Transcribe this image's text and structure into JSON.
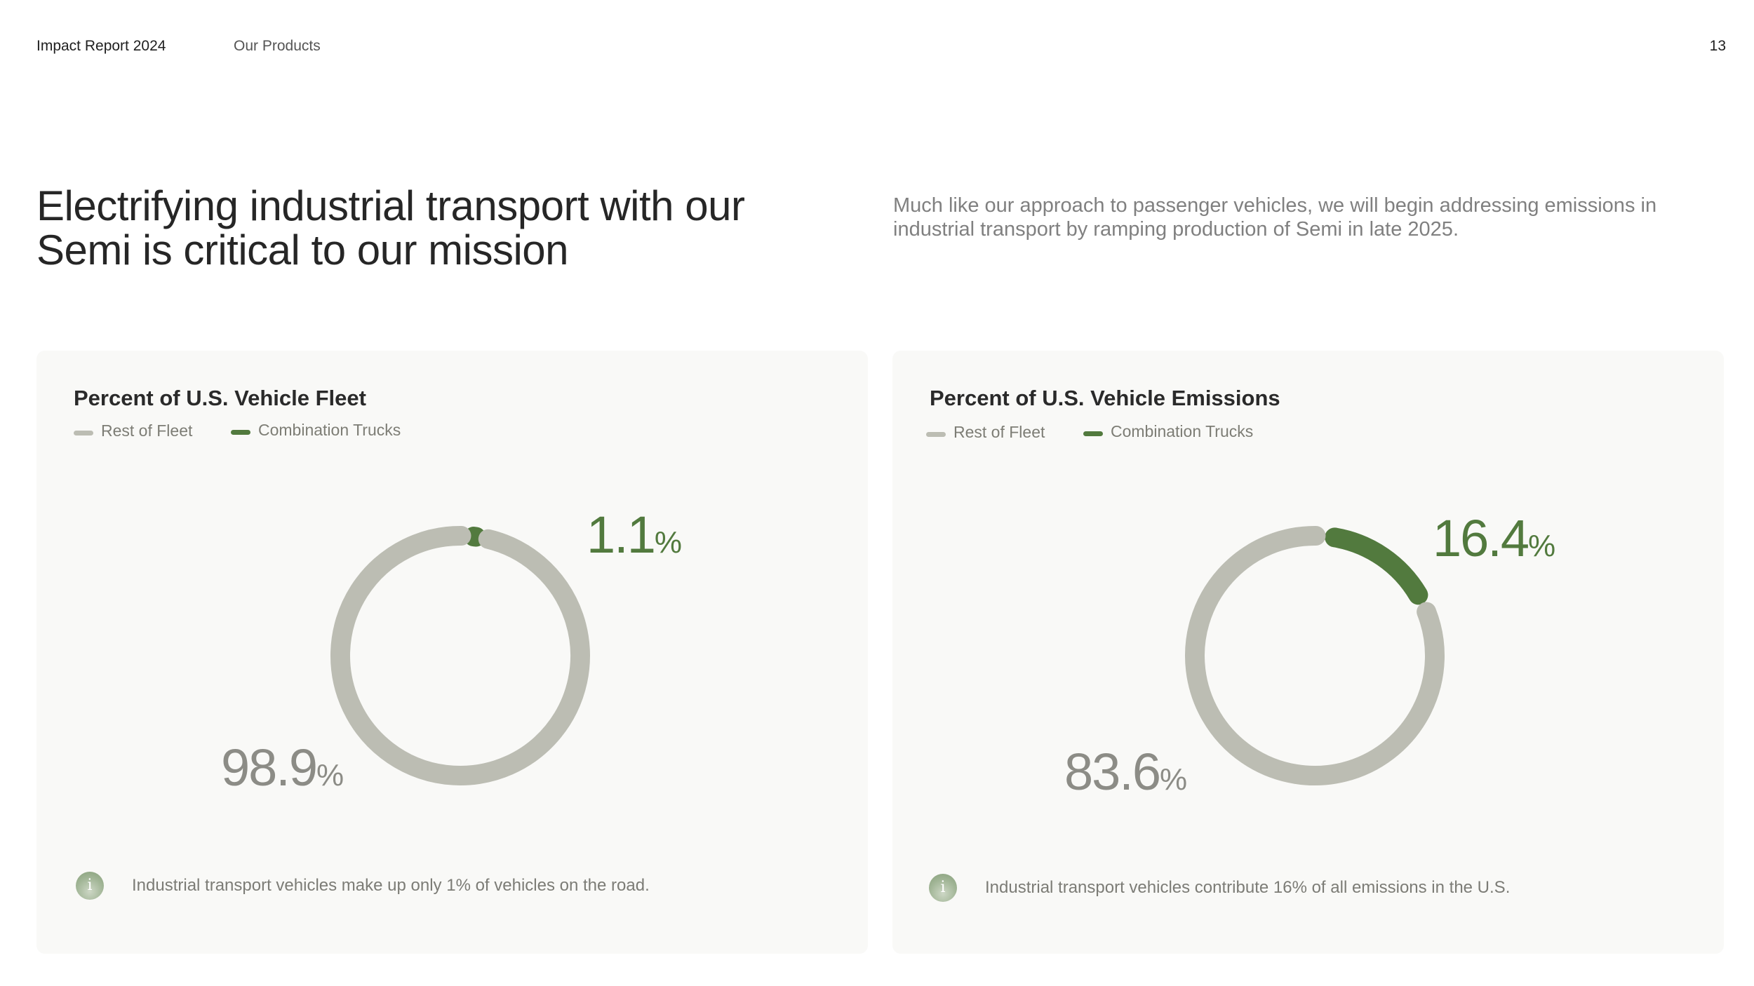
{
  "header": {
    "report_title": "Impact Report 2024",
    "section": "Our Products",
    "page_number": "13"
  },
  "headline": "Electrifying industrial transport with our Semi is critical to our mission",
  "intro": "Much like our approach to passenger vehicles, we will begin addressing emissions in industrial transport by ramping production of Semi in late 2025.",
  "colors": {
    "rest_of_fleet": "#bcbdb3",
    "combination_trucks": "#527a3e",
    "panel_background": "#f9f9f7"
  },
  "chart_data": [
    {
      "type": "pie",
      "style": "donut",
      "title": "Percent of U.S. Vehicle Fleet",
      "legend": [
        "Rest of Fleet",
        "Combination Trucks"
      ],
      "categories": [
        "Rest of Fleet",
        "Combination Trucks"
      ],
      "values": [
        98.9,
        1.1
      ],
      "value_labels": [
        {
          "number": "98.9",
          "unit": "%"
        },
        {
          "number": "1.1",
          "unit": "%"
        }
      ],
      "note": "Industrial transport vehicles make up only 1% of vehicles on the road."
    },
    {
      "type": "pie",
      "style": "donut",
      "title": "Percent of U.S. Vehicle Emissions",
      "legend": [
        "Rest of Fleet",
        "Combination Trucks"
      ],
      "categories": [
        "Rest of Fleet",
        "Combination Trucks"
      ],
      "values": [
        83.6,
        16.4
      ],
      "value_labels": [
        {
          "number": "83.6",
          "unit": "%"
        },
        {
          "number": "16.4",
          "unit": "%"
        }
      ],
      "note": "Industrial transport vehicles contribute 16% of all emissions in the U.S."
    }
  ]
}
